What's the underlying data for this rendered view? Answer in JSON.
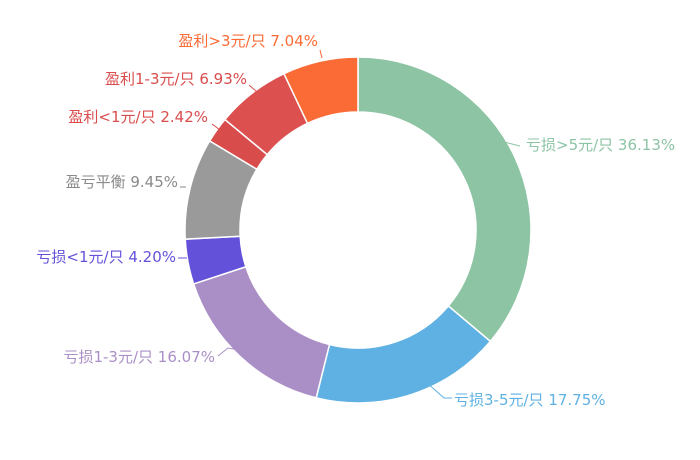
{
  "chart_data": {
    "type": "pie",
    "variant": "donut",
    "title": "",
    "legend": "none",
    "slices": [
      {
        "label": "亏损>5元/只",
        "value": 36.13,
        "display": "亏损>5元/只 36.13%",
        "color": "#8cc4a4"
      },
      {
        "label": "亏损3-5元/只",
        "value": 17.75,
        "display": "亏损3-5元/只 17.75%",
        "color": "#5fb1e3"
      },
      {
        "label": "亏损1-3元/只",
        "value": 16.07,
        "display": "亏损1-3元/只 16.07%",
        "color": "#aa8fc7"
      },
      {
        "label": "亏损<1元/只",
        "value": 4.2,
        "display": "亏损<1元/只 4.20%",
        "color": "#6352d9"
      },
      {
        "label": "盈亏平衡",
        "value": 9.45,
        "display": "盈亏平衡 9.45%",
        "color": "#9a9a9a"
      },
      {
        "label": "盈利<1元/只",
        "value": 2.42,
        "display": "盈利<1元/只 2.42%",
        "color": "#d94c4c"
      },
      {
        "label": "盈利1-3元/只",
        "value": 6.93,
        "display": "盈利1-3元/只 6.93%",
        "color": "#dc5050"
      },
      {
        "label": "盈利>3元/只",
        "value": 7.04,
        "display": "盈利>3元/只 7.04%",
        "color": "#fb6b35"
      }
    ]
  }
}
